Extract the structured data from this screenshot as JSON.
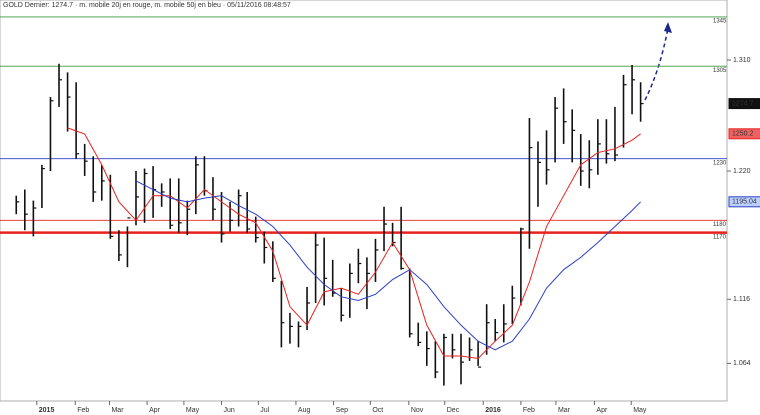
{
  "chart_data": {
    "type": "ohlc",
    "title": "GOLD Dernier: 1274.7 · m. mobile 20j en rouge, m. mobile 50j en bleu · 05/11/2016 08:48:57",
    "bar_color": "#111111",
    "high": [
      1200,
      1205,
      1196,
      1225,
      1280,
      1307,
      1300,
      1292,
      1242,
      1232,
      1225,
      1217,
      1172,
      1175,
      1220,
      1222,
      1224,
      1210,
      1214,
      1214,
      1196,
      1232,
      1232,
      1215,
      1203,
      1195,
      1205,
      1203,
      1183,
      1171,
      1163,
      1131,
      1105,
      1098,
      1126,
      1170,
      1166,
      1148,
      1125,
      1145,
      1157,
      1150,
      1165,
      1191,
      1178,
      1191,
      1141,
      1097,
      1090,
      1082,
      1088,
      1088,
      1088,
      1085,
      1082,
      1112,
      1100,
      1112,
      1127,
      1174,
      1263,
      1244,
      1253,
      1280,
      1287,
      1270,
      1250,
      1245,
      1262,
      1262,
      1272,
      1298,
      1306,
      1292
    ],
    "low": [
      1185,
      1172,
      1167,
      1190,
      1220,
      1272,
      1252,
      1230,
      1216,
      1195,
      1196,
      1165,
      1147,
      1142,
      1176,
      1178,
      1182,
      1191,
      1173,
      1170,
      1168,
      1185,
      1200,
      1180,
      1162,
      1171,
      1175,
      1170,
      1162,
      1145,
      1130,
      1077,
      1080,
      1077,
      1091,
      1113,
      1111,
      1118,
      1098,
      1101,
      1129,
      1108,
      1130,
      1155,
      1159,
      1140,
      1085,
      1078,
      1062,
      1052,
      1046,
      1068,
      1047,
      1066,
      1062,
      1071,
      1082,
      1081,
      1096,
      1111,
      1157,
      1191,
      1209,
      1227,
      1242,
      1227,
      1208,
      1206,
      1217,
      1226,
      1228,
      1239,
      1266,
      1260
    ],
    "close": [
      1195,
      1185,
      1190,
      1222,
      1277,
      1294,
      1280,
      1234,
      1228,
      1203,
      1212,
      1167,
      1152,
      1182,
      1199,
      1218,
      1205,
      1203,
      1176,
      1178,
      1189,
      1225,
      1204,
      1189,
      1169,
      1180,
      1200,
      1173,
      1166,
      1158,
      1133,
      1097,
      1094,
      1094,
      1113,
      1160,
      1133,
      1121,
      1103,
      1137,
      1145,
      1137,
      1156,
      1177,
      1162,
      1141,
      1088,
      1081,
      1076,
      1057,
      1085,
      1075,
      1065,
      1075,
      1061,
      1097,
      1089,
      1096,
      1117,
      1173,
      1239,
      1227,
      1221,
      1271,
      1260,
      1253,
      1220,
      1221,
      1242,
      1234,
      1233,
      1290,
      1294,
      1274.7
    ],
    "overlays": [
      {
        "color": "#e8231f",
        "x": [
          6,
          8,
          10,
          12,
          14,
          16,
          18,
          20,
          22,
          24,
          26,
          28,
          30,
          32,
          34,
          36,
          38,
          40,
          42,
          44,
          46,
          48,
          50,
          52,
          54,
          56,
          58,
          60,
          62,
          64,
          66,
          68,
          70,
          72,
          73
        ],
        "values": [
          1255,
          1250,
          1225,
          1195,
          1180,
          1200,
          1200,
          1190,
          1205,
          1195,
          1185,
          1178,
          1155,
          1110,
          1095,
          1122,
          1125,
          1120,
          1138,
          1162,
          1140,
          1095,
          1070,
          1070,
          1068,
          1082,
          1095,
          1130,
          1175,
          1200,
          1225,
          1235,
          1238,
          1245,
          1250.2
        ]
      },
      {
        "color": "#2a3fc4",
        "x": [
          14,
          16,
          18,
          20,
          22,
          24,
          26,
          28,
          30,
          32,
          34,
          36,
          38,
          40,
          42,
          44,
          46,
          48,
          50,
          52,
          54,
          56,
          58,
          60,
          62,
          64,
          66,
          68,
          70,
          72,
          73
        ],
        "values": [
          1212,
          1205,
          1198,
          1195,
          1198,
          1200,
          1192,
          1185,
          1175,
          1160,
          1142,
          1128,
          1118,
          1115,
          1120,
          1132,
          1140,
          1128,
          1110,
          1095,
          1082,
          1075,
          1082,
          1100,
          1125,
          1140,
          1150,
          1162,
          1175,
          1188,
          1195.04
        ]
      }
    ],
    "levels": [
      {
        "value": 1345,
        "color": "#3a9a3a",
        "thick": false
      },
      {
        "value": 1305,
        "color": "#3a9a3a",
        "thick": false
      },
      {
        "value": 1230,
        "color": "#2a3fc4",
        "thick": false
      },
      {
        "value": 1180,
        "color": "#e8231f",
        "thick": false
      },
      {
        "value": 1170,
        "color": "#e8231f",
        "thick": true
      }
    ],
    "xlim": [
      -1.9,
      83.1
    ],
    "xticks": [
      {
        "value": 2.4,
        "label": "2015"
      },
      {
        "value": 6.9,
        "label": "Feb"
      },
      {
        "value": 10.9,
        "label": "Mar"
      },
      {
        "value": 15.3,
        "label": "Apr"
      },
      {
        "value": 19.6,
        "label": "May"
      },
      {
        "value": 24.0,
        "label": "Jun"
      },
      {
        "value": 28.3,
        "label": "Jul"
      },
      {
        "value": 32.7,
        "label": "Aug"
      },
      {
        "value": 37.1,
        "label": "Sep"
      },
      {
        "value": 41.4,
        "label": "Oct"
      },
      {
        "value": 45.9,
        "label": "Nov"
      },
      {
        "value": 50.1,
        "label": "Dec"
      },
      {
        "value": 54.6,
        "label": "2016"
      },
      {
        "value": 59.0,
        "label": "Feb"
      },
      {
        "value": 63.1,
        "label": "Mar"
      },
      {
        "value": 67.6,
        "label": "Apr"
      },
      {
        "value": 71.9,
        "label": "May"
      }
    ],
    "ylim": [
      1033.5,
      1358.7
    ],
    "yticks": [
      {
        "value": 1310,
        "label": "1.310"
      },
      {
        "value": 1220,
        "label": "1.220"
      },
      {
        "value": 1116,
        "label": "1.116"
      },
      {
        "value": 1064,
        "label": "1.064"
      }
    ]
  }
}
